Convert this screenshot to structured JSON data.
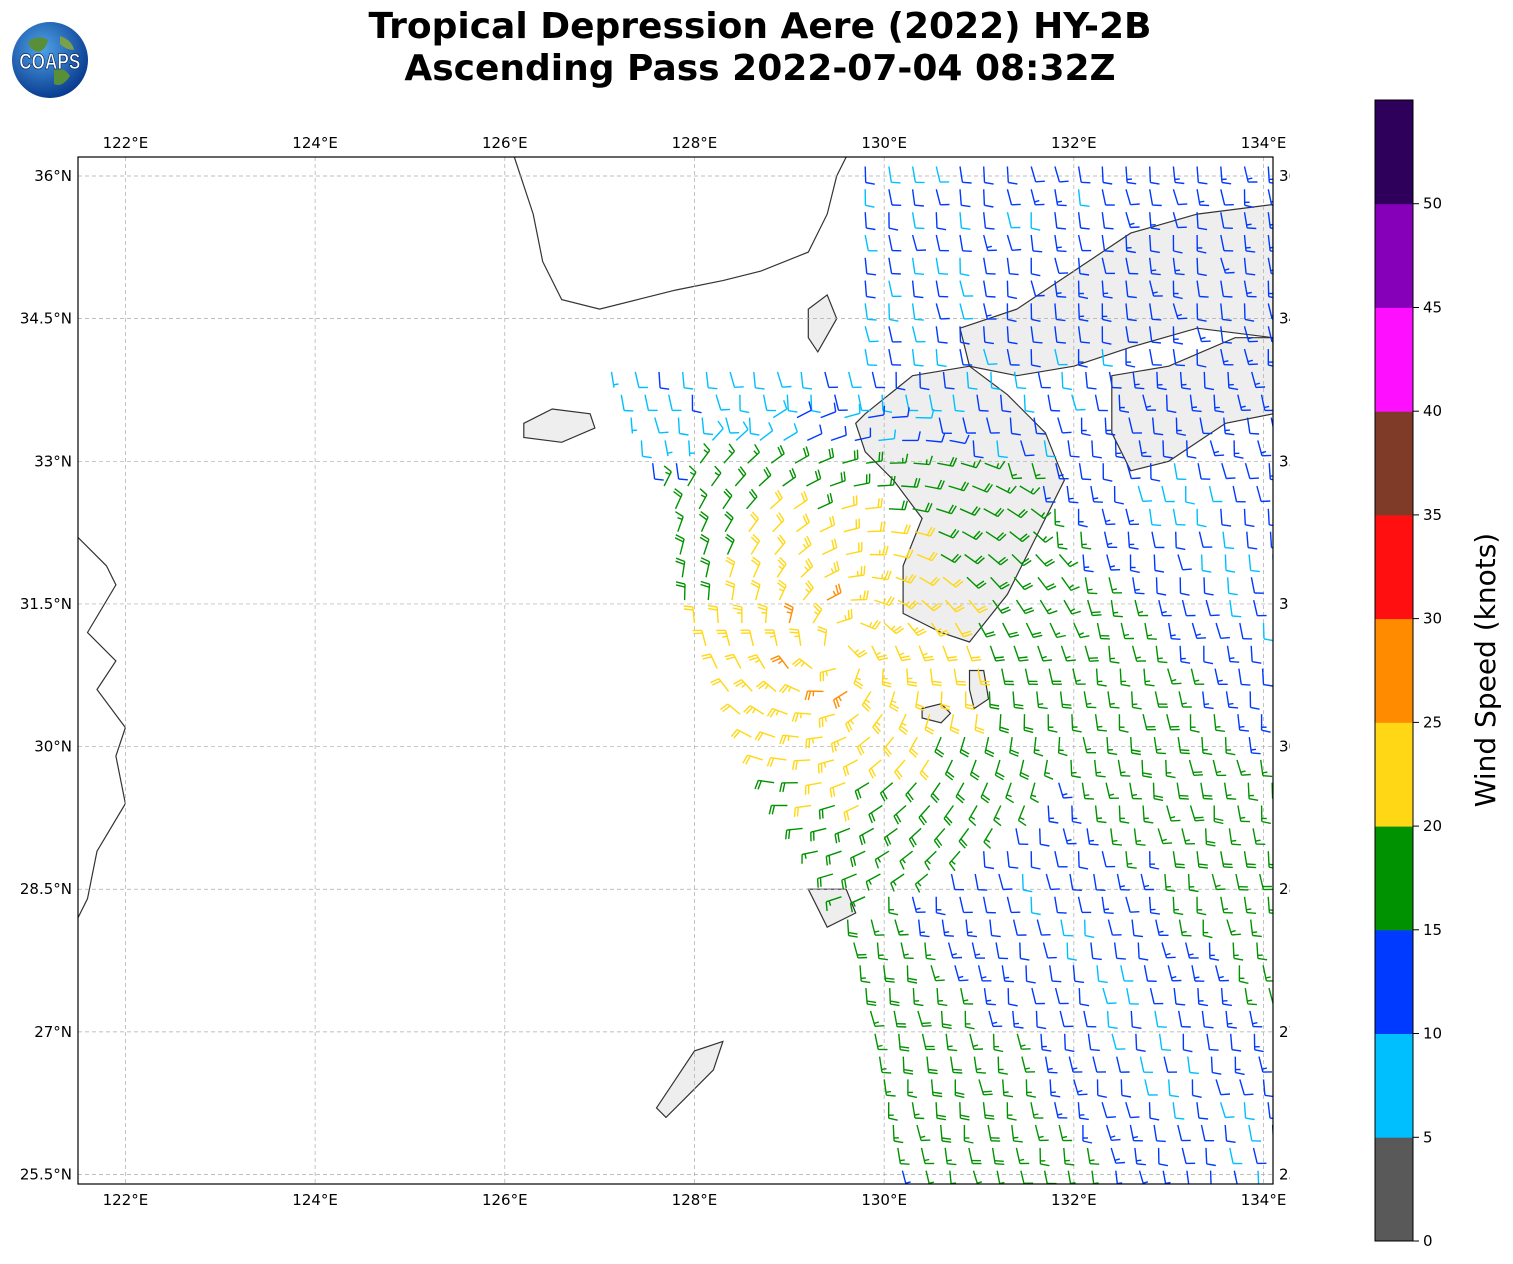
{
  "title": {
    "line1": "Tropical Depression Aere (2022) HY-2B",
    "line2": "Ascending Pass 2022-07-04 08:32Z"
  },
  "logo": {
    "text": "COAPS",
    "icon": "globe-icon"
  },
  "map": {
    "lon_range": [
      121.5,
      134.1
    ],
    "lat_range": [
      25.4,
      36.2
    ],
    "lon_ticks": [
      {
        "value": 122,
        "label": "122°E"
      },
      {
        "value": 124,
        "label": "124°E"
      },
      {
        "value": 126,
        "label": "126°E"
      },
      {
        "value": 128,
        "label": "128°E"
      },
      {
        "value": 130,
        "label": "130°E"
      },
      {
        "value": 132,
        "label": "132°E"
      },
      {
        "value": 134,
        "label": "134°E"
      }
    ],
    "lat_ticks": [
      {
        "value": 25.5,
        "label": "25.5°N"
      },
      {
        "value": 27,
        "label": "27°N"
      },
      {
        "value": 28.5,
        "label": "28.5°N"
      },
      {
        "value": 30,
        "label": "30°N"
      },
      {
        "value": 31.5,
        "label": "31.5°N"
      },
      {
        "value": 33,
        "label": "33°N"
      },
      {
        "value": 34.5,
        "label": "34.5°N"
      },
      {
        "value": 36,
        "label": "36°N"
      }
    ],
    "wind_center": {
      "lon": 129.5,
      "lat": 31.0
    },
    "swath_edge_west": [
      [
        127.1,
        34.0
      ],
      [
        127.4,
        33.3
      ],
      [
        127.8,
        32.5
      ],
      [
        127.9,
        31.5
      ],
      [
        128.4,
        30.5
      ],
      [
        128.9,
        29.5
      ],
      [
        129.5,
        28.6
      ],
      [
        129.8,
        27.5
      ],
      [
        130.0,
        26.5
      ],
      [
        130.2,
        25.5
      ]
    ],
    "land": [
      {
        "name": "korea",
        "poly": [
          [
            126.1,
            36.2
          ],
          [
            126.3,
            35.6
          ],
          [
            126.4,
            35.1
          ],
          [
            126.6,
            34.7
          ],
          [
            127.0,
            34.6
          ],
          [
            127.4,
            34.7
          ],
          [
            127.8,
            34.8
          ],
          [
            128.3,
            34.9
          ],
          [
            128.7,
            35.0
          ],
          [
            129.2,
            35.2
          ],
          [
            129.4,
            35.6
          ],
          [
            129.5,
            36.0
          ],
          [
            129.6,
            36.2
          ]
        ]
      },
      {
        "name": "kyushu",
        "poly": [
          [
            129.8,
            33.5
          ],
          [
            130.3,
            33.9
          ],
          [
            130.9,
            34.0
          ],
          [
            131.3,
            33.7
          ],
          [
            131.7,
            33.3
          ],
          [
            131.9,
            32.8
          ],
          [
            131.6,
            32.2
          ],
          [
            131.3,
            31.6
          ],
          [
            130.9,
            31.1
          ],
          [
            130.6,
            31.2
          ],
          [
            130.2,
            31.4
          ],
          [
            130.2,
            31.9
          ],
          [
            130.4,
            32.4
          ],
          [
            130.1,
            32.8
          ],
          [
            129.8,
            33.1
          ],
          [
            129.7,
            33.4
          ]
        ]
      },
      {
        "name": "honshu_west",
        "poly": [
          [
            130.8,
            34.4
          ],
          [
            131.4,
            34.6
          ],
          [
            132.0,
            35.0
          ],
          [
            132.6,
            35.4
          ],
          [
            133.3,
            35.6
          ],
          [
            134.1,
            35.7
          ],
          [
            134.1,
            34.3
          ],
          [
            133.3,
            34.4
          ],
          [
            132.6,
            34.2
          ],
          [
            132.0,
            34.0
          ],
          [
            131.4,
            33.9
          ],
          [
            130.9,
            34.0
          ]
        ]
      },
      {
        "name": "shikoku",
        "poly": [
          [
            132.4,
            33.9
          ],
          [
            133.0,
            34.0
          ],
          [
            133.7,
            34.3
          ],
          [
            134.1,
            34.3
          ],
          [
            134.1,
            33.5
          ],
          [
            133.6,
            33.4
          ],
          [
            133.0,
            33.0
          ],
          [
            132.6,
            32.9
          ],
          [
            132.4,
            33.3
          ]
        ]
      },
      {
        "name": "jeju",
        "poly": [
          [
            126.2,
            33.4
          ],
          [
            126.5,
            33.55
          ],
          [
            126.9,
            33.5
          ],
          [
            126.95,
            33.35
          ],
          [
            126.6,
            33.2
          ],
          [
            126.2,
            33.25
          ]
        ]
      },
      {
        "name": "tsushima",
        "poly": [
          [
            129.2,
            34.6
          ],
          [
            129.4,
            34.75
          ],
          [
            129.5,
            34.5
          ],
          [
            129.3,
            34.15
          ],
          [
            129.2,
            34.3
          ]
        ]
      },
      {
        "name": "china_coast",
        "poly": [
          [
            121.5,
            32.2
          ],
          [
            121.8,
            31.9
          ],
          [
            121.9,
            31.7
          ],
          [
            121.6,
            31.2
          ],
          [
            121.9,
            30.9
          ],
          [
            121.7,
            30.6
          ],
          [
            122.0,
            30.2
          ],
          [
            121.9,
            29.9
          ],
          [
            122.0,
            29.4
          ],
          [
            121.7,
            28.9
          ],
          [
            121.6,
            28.4
          ],
          [
            121.5,
            28.2
          ]
        ]
      },
      {
        "name": "yakushima",
        "poly": [
          [
            130.4,
            30.4
          ],
          [
            130.6,
            30.45
          ],
          [
            130.7,
            30.35
          ],
          [
            130.6,
            30.25
          ],
          [
            130.4,
            30.3
          ]
        ]
      },
      {
        "name": "tanegashima",
        "poly": [
          [
            130.9,
            30.8
          ],
          [
            131.05,
            30.8
          ],
          [
            131.1,
            30.5
          ],
          [
            130.95,
            30.4
          ],
          [
            130.9,
            30.6
          ]
        ]
      },
      {
        "name": "amami",
        "poly": [
          [
            129.2,
            28.5
          ],
          [
            129.6,
            28.5
          ],
          [
            129.7,
            28.25
          ],
          [
            129.4,
            28.1
          ],
          [
            129.3,
            28.3
          ]
        ]
      },
      {
        "name": "okinawa",
        "poly": [
          [
            127.6,
            26.2
          ],
          [
            127.8,
            26.5
          ],
          [
            128.0,
            26.8
          ],
          [
            128.3,
            26.9
          ],
          [
            128.2,
            26.6
          ],
          [
            127.9,
            26.3
          ],
          [
            127.7,
            26.1
          ]
        ]
      }
    ]
  },
  "colorbar": {
    "label": "Wind Speed (knots)",
    "bins": [
      {
        "min": 0,
        "max": 5,
        "color": "#595959"
      },
      {
        "min": 5,
        "max": 10,
        "color": "#00bfff"
      },
      {
        "min": 10,
        "max": 15,
        "color": "#0039ff"
      },
      {
        "min": 15,
        "max": 20,
        "color": "#009200"
      },
      {
        "min": 20,
        "max": 25,
        "color": "#ffd714"
      },
      {
        "min": 25,
        "max": 30,
        "color": "#ff8c00"
      },
      {
        "min": 30,
        "max": 35,
        "color": "#ff0f0f"
      },
      {
        "min": 35,
        "max": 40,
        "color": "#7f3a28"
      },
      {
        "min": 40,
        "max": 45,
        "color": "#ff0fff"
      },
      {
        "min": 45,
        "max": 50,
        "color": "#8700b9"
      },
      {
        "min": 50,
        "max": 55,
        "color": "#2e005c"
      }
    ],
    "tick_labels": [
      "0",
      "5",
      "10",
      "15",
      "20",
      "25",
      "30",
      "35",
      "40",
      "45",
      "50"
    ]
  }
}
